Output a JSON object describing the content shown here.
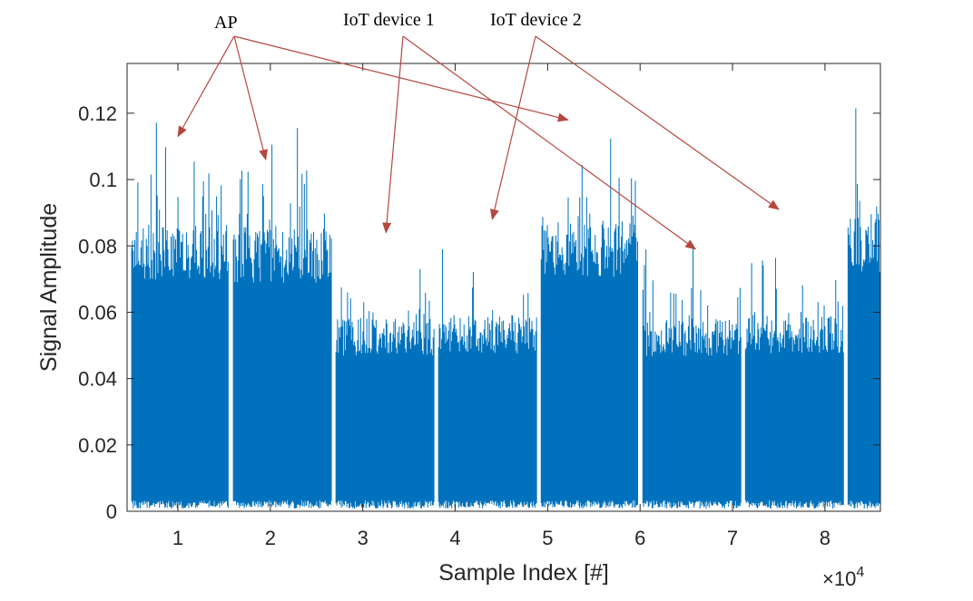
{
  "chart_data": {
    "type": "line",
    "title": "",
    "xlabel": "Sample Index [#]",
    "ylabel": "Signal Amplitude",
    "x_exponent_label": "×10",
    "x_exponent_power": "4",
    "xlim": [
      0.45,
      8.6
    ],
    "ylim": [
      0,
      0.135
    ],
    "xticks": [
      1,
      2,
      3,
      4,
      5,
      6,
      7,
      8
    ],
    "xtick_labels": [
      "1",
      "2",
      "3",
      "4",
      "5",
      "6",
      "7",
      "8"
    ],
    "yticks": [
      0,
      0.02,
      0.04,
      0.06,
      0.08,
      0.1,
      0.12
    ],
    "ytick_labels": [
      "0",
      "0.02",
      "0.04",
      "0.06",
      "0.08",
      "0.1",
      "0.12"
    ],
    "grid": false,
    "line_color": "#0072BD",
    "annotation_color": "#B5473F",
    "series": [
      {
        "segments": [
          {
            "x_start": 0.5,
            "x_end": 1.55,
            "typical_max": 0.085,
            "peak_max": 0.124,
            "source": "AP"
          },
          {
            "x_start": 1.6,
            "x_end": 2.66,
            "typical_max": 0.084,
            "peak_max": 0.127,
            "source": "AP"
          },
          {
            "x_start": 2.71,
            "x_end": 3.77,
            "typical_max": 0.057,
            "peak_max": 0.081,
            "source": "IoT device 1"
          },
          {
            "x_start": 3.82,
            "x_end": 4.88,
            "typical_max": 0.058,
            "peak_max": 0.082,
            "source": "IoT device 2"
          },
          {
            "x_start": 4.93,
            "x_end": 5.98,
            "typical_max": 0.086,
            "peak_max": 0.119,
            "source": "AP"
          },
          {
            "x_start": 6.03,
            "x_end": 7.09,
            "typical_max": 0.057,
            "peak_max": 0.081,
            "source": "IoT device 1"
          },
          {
            "x_start": 7.14,
            "x_end": 8.2,
            "typical_max": 0.058,
            "peak_max": 0.081,
            "source": "IoT device 2"
          },
          {
            "x_start": 8.25,
            "x_end": 8.6,
            "typical_max": 0.088,
            "peak_max": 0.125,
            "source": "AP"
          }
        ]
      }
    ],
    "annotations": [
      {
        "text": "AP",
        "arrows_to": [
          [
            1.0,
            0.113
          ],
          [
            1.95,
            0.106
          ],
          [
            5.22,
            0.118
          ]
        ]
      },
      {
        "text": "IoT device 1",
        "arrows_to": [
          [
            3.25,
            0.084
          ],
          [
            6.6,
            0.079
          ]
        ]
      },
      {
        "text": "IoT device 2",
        "arrows_to": [
          [
            4.4,
            0.088
          ],
          [
            7.5,
            0.091
          ]
        ]
      }
    ]
  }
}
